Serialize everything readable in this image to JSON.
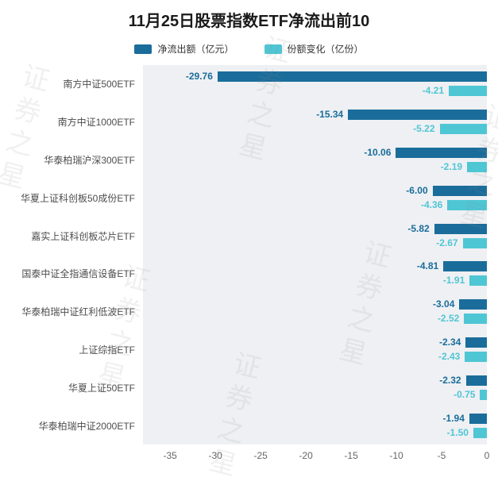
{
  "title": "11月25日股票指数ETF净流出前10",
  "watermark": {
    "text": "证券之星"
  },
  "legend": {
    "items": [
      {
        "label": "净流出额（亿元）",
        "color": "#1a6d9b"
      },
      {
        "label": "份额变化（亿份）",
        "color": "#4fc6d4"
      }
    ]
  },
  "chart_data": {
    "type": "bar",
    "orientation": "horizontal",
    "title": "11月25日股票指数ETF净流出前10",
    "categories": [
      "南方中证500ETF",
      "南方中证1000ETF",
      "华泰柏瑞沪深300ETF",
      "华夏上证科创板50成份ETF",
      "嘉实上证科创板芯片ETF",
      "国泰中证全指通信设备ETF",
      "华泰柏瑞中证红利低波ETF",
      "上证综指ETF",
      "华夏上证50ETF",
      "华泰柏瑞中证2000ETF"
    ],
    "series": [
      {
        "name": "净流出额（亿元）",
        "color": "#1a6d9b",
        "values": [
          -29.76,
          -15.34,
          -10.06,
          -6.0,
          -5.82,
          -4.81,
          -3.04,
          -2.34,
          -2.32,
          -1.94
        ]
      },
      {
        "name": "份额变化（亿份）",
        "color": "#4fc6d4",
        "values": [
          -4.21,
          -5.22,
          -2.19,
          -4.36,
          -2.67,
          -1.91,
          -2.52,
          -2.43,
          -0.75,
          -1.5
        ]
      }
    ],
    "xlim": [
      -38,
      0
    ],
    "x_ticks": [
      -35,
      -30,
      -25,
      -20,
      -15,
      -10,
      -5,
      0
    ],
    "value_decimals": 2,
    "plot_bg": "#eef0f3",
    "grid": false,
    "legend_position": "top"
  }
}
